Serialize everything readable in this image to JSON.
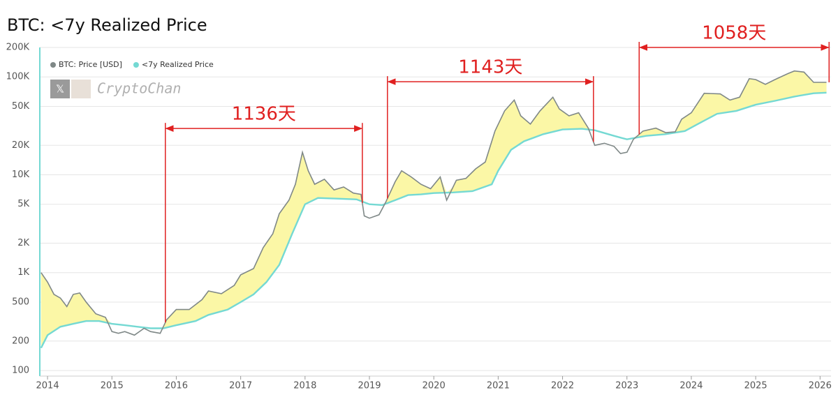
{
  "chart_data": {
    "type": "line",
    "title": "BTC: <7y Realized Price",
    "log_y": true,
    "grid": true,
    "legend": "top-left",
    "watermark": "CryptoChan",
    "fill_color": "#fbf7a6",
    "xlim": [
      2013.88,
      2026.17
    ],
    "xticks": [
      2014,
      2015,
      2016,
      2017,
      2018,
      2019,
      2020,
      2021,
      2022,
      2023,
      2024,
      2025,
      2026
    ],
    "ylim": [
      100,
      200000
    ],
    "yticks": [
      {
        "value": 100,
        "label": "100"
      },
      {
        "value": 200,
        "label": "200"
      },
      {
        "value": 500,
        "label": "500"
      },
      {
        "value": 1000,
        "label": "1K"
      },
      {
        "value": 2000,
        "label": "2K"
      },
      {
        "value": 5000,
        "label": "5K"
      },
      {
        "value": 10000,
        "label": "10K"
      },
      {
        "value": 20000,
        "label": "20K"
      },
      {
        "value": 50000,
        "label": "50K"
      },
      {
        "value": 100000,
        "label": "100K"
      },
      {
        "value": 200000,
        "label": "200K"
      }
    ],
    "series": [
      {
        "name": "BTC: Price [USD]",
        "color": "#7f8887",
        "x": [
          2013.9,
          2014.0,
          2014.1,
          2014.2,
          2014.3,
          2014.4,
          2014.5,
          2014.6,
          2014.75,
          2014.9,
          2015.0,
          2015.1,
          2015.2,
          2015.35,
          2015.5,
          2015.6,
          2015.75,
          2015.85,
          2016.0,
          2016.2,
          2016.4,
          2016.5,
          2016.7,
          2016.9,
          2017.0,
          2017.2,
          2017.35,
          2017.5,
          2017.6,
          2017.75,
          2017.85,
          2017.96,
          2018.05,
          2018.15,
          2018.3,
          2018.45,
          2018.6,
          2018.75,
          2018.87,
          2018.92,
          2019.0,
          2019.15,
          2019.25,
          2019.4,
          2019.5,
          2019.65,
          2019.8,
          2019.95,
          2020.1,
          2020.2,
          2020.35,
          2020.5,
          2020.65,
          2020.8,
          2020.95,
          2021.1,
          2021.25,
          2021.35,
          2021.5,
          2021.65,
          2021.85,
          2021.95,
          2022.1,
          2022.25,
          2022.4,
          2022.5,
          2022.65,
          2022.8,
          2022.9,
          2023.0,
          2023.1,
          2023.25,
          2023.45,
          2023.6,
          2023.75,
          2023.85,
          2024.0,
          2024.2,
          2024.45,
          2024.6,
          2024.75,
          2024.9,
          2025.0,
          2025.15,
          2025.3,
          2025.5,
          2025.6,
          2025.75,
          2025.9,
          2026.1
        ],
        "values": [
          1000,
          800,
          600,
          550,
          450,
          600,
          620,
          500,
          380,
          350,
          250,
          240,
          250,
          230,
          270,
          250,
          240,
          330,
          420,
          420,
          530,
          650,
          610,
          740,
          950,
          1100,
          1800,
          2500,
          4000,
          5500,
          8000,
          17000,
          11000,
          8000,
          9000,
          7000,
          7500,
          6500,
          6300,
          3800,
          3600,
          3900,
          5200,
          8500,
          11000,
          9500,
          8000,
          7200,
          9500,
          5500,
          8800,
          9200,
          11500,
          13500,
          28000,
          45000,
          58000,
          40000,
          33000,
          45000,
          62000,
          47000,
          40000,
          43000,
          30000,
          20000,
          21000,
          19500,
          16500,
          17000,
          23000,
          28000,
          30000,
          27000,
          27500,
          37000,
          43000,
          68000,
          67000,
          58000,
          62000,
          96000,
          94000,
          84000,
          94000,
          108000,
          115000,
          112000,
          88000,
          88000
        ]
      },
      {
        "name": "<7y Realized Price",
        "color": "#74d9d3",
        "x": [
          2013.9,
          2014.0,
          2014.2,
          2014.4,
          2014.6,
          2014.8,
          2015.0,
          2015.2,
          2015.4,
          2015.6,
          2015.8,
          2016.0,
          2016.3,
          2016.5,
          2016.8,
          2017.0,
          2017.2,
          2017.4,
          2017.6,
          2017.8,
          2018.0,
          2018.2,
          2018.5,
          2018.8,
          2019.0,
          2019.2,
          2019.4,
          2019.6,
          2019.8,
          2020.0,
          2020.3,
          2020.6,
          2020.9,
          2021.0,
          2021.2,
          2021.4,
          2021.7,
          2022.0,
          2022.3,
          2022.5,
          2022.8,
          2023.0,
          2023.3,
          2023.6,
          2023.9,
          2024.1,
          2024.4,
          2024.7,
          2025.0,
          2025.3,
          2025.6,
          2025.9,
          2026.1
        ],
        "values": [
          170,
          230,
          280,
          300,
          320,
          320,
          300,
          290,
          280,
          270,
          270,
          290,
          320,
          370,
          420,
          500,
          600,
          800,
          1200,
          2500,
          5000,
          5800,
          5700,
          5600,
          5000,
          4900,
          5500,
          6200,
          6300,
          6500,
          6600,
          6800,
          8000,
          11000,
          18000,
          22000,
          26000,
          29000,
          29500,
          28500,
          25000,
          23000,
          25000,
          26000,
          28000,
          33000,
          42000,
          45000,
          52000,
          57000,
          63000,
          68000,
          69000
        ]
      }
    ],
    "annotations": [
      {
        "text": "1136天",
        "x": [
          2015.83,
          2018.89
        ],
        "y": 29700
      },
      {
        "text": "1143天",
        "x": [
          2019.28,
          2022.48
        ],
        "y": 89300
      },
      {
        "text": "1058天",
        "x": [
          2023.19,
          2026.14
        ],
        "y": 200000
      }
    ],
    "annotation_color": "#e02020"
  }
}
